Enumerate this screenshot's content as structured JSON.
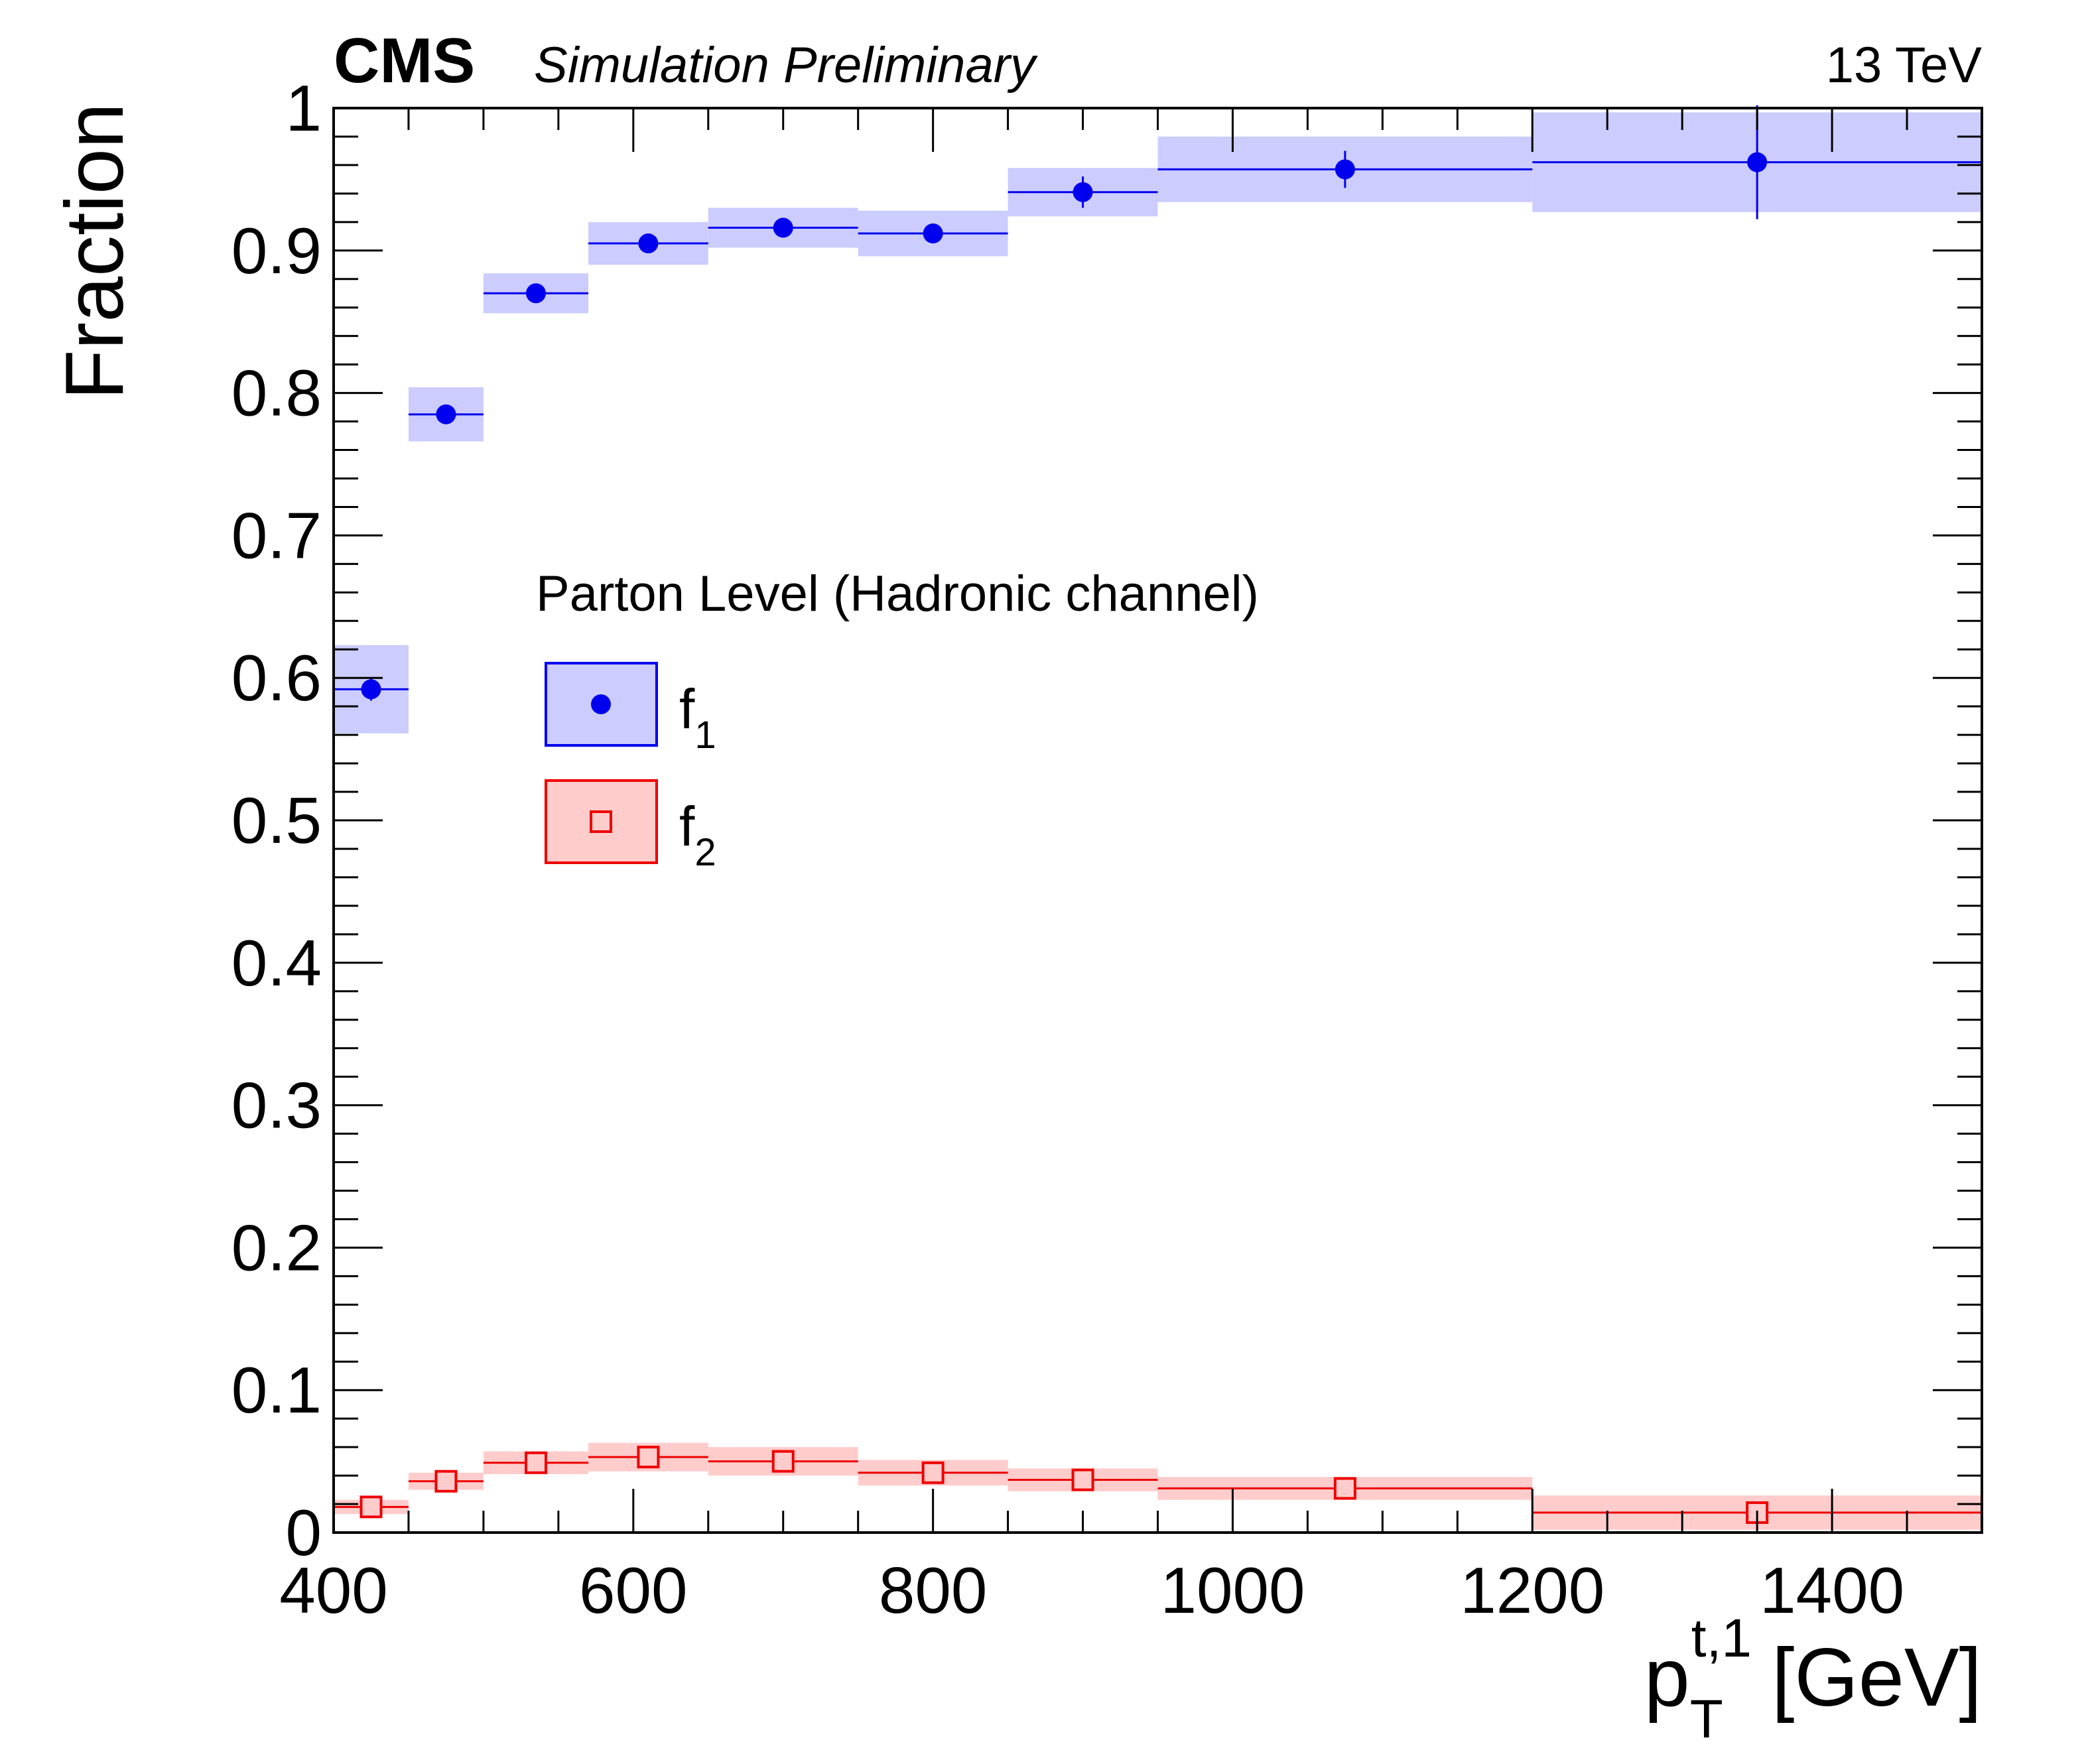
{
  "header": {
    "experiment": "CMS",
    "tag": "Simulation Preliminary",
    "energy": "13 TeV"
  },
  "chart_data": {
    "type": "scatter",
    "title": "",
    "ylabel": "Fraction",
    "xlabel": {
      "main": "p",
      "subscript": "T",
      "superscript": "t,1",
      "unit": "[GeV]"
    },
    "xlim": [
      400,
      1500
    ],
    "ylim": [
      0,
      1
    ],
    "x_ticks": [
      400,
      600,
      800,
      1000,
      1200,
      1400
    ],
    "x_tick_labels": [
      "400",
      "600",
      "800",
      "1000",
      "1200",
      "1400"
    ],
    "y_ticks": [
      0,
      0.1,
      0.2,
      0.3,
      0.4,
      0.5,
      0.6,
      0.7,
      0.8,
      0.9,
      1
    ],
    "y_tick_labels": [
      "0",
      "0.1",
      "0.2",
      "0.3",
      "0.4",
      "0.5",
      "0.6",
      "0.7",
      "0.8",
      "0.9",
      "1"
    ],
    "legend": {
      "title": "Parton Level (Hadronic channel)",
      "placement": "center-left",
      "entries": [
        {
          "label": "f",
          "subscript": "1"
        },
        {
          "label": "f",
          "subscript": "2"
        }
      ]
    },
    "series": [
      {
        "name": "f1",
        "color": "#0000ee",
        "band_color": "#ccccff",
        "marker": "filled-circle",
        "bins": [
          {
            "lo": 400,
            "hi": 450,
            "x": 425,
            "y": 0.592,
            "err": 0.008,
            "band": [
              0.561,
              0.623
            ]
          },
          {
            "lo": 450,
            "hi": 500,
            "x": 475,
            "y": 0.785,
            "err": 0.005,
            "band": [
              0.766,
              0.804
            ]
          },
          {
            "lo": 500,
            "hi": 570,
            "x": 535,
            "y": 0.87,
            "err": 0.004,
            "band": [
              0.856,
              0.884
            ]
          },
          {
            "lo": 570,
            "hi": 650,
            "x": 610,
            "y": 0.905,
            "err": 0.004,
            "band": [
              0.89,
              0.92
            ]
          },
          {
            "lo": 650,
            "hi": 750,
            "x": 700,
            "y": 0.916,
            "err": 0.004,
            "band": [
              0.902,
              0.93
            ]
          },
          {
            "lo": 750,
            "hi": 850,
            "x": 800,
            "y": 0.912,
            "err": 0.007,
            "band": [
              0.896,
              0.928
            ]
          },
          {
            "lo": 850,
            "hi": 950,
            "x": 900,
            "y": 0.941,
            "err": 0.011,
            "band": [
              0.924,
              0.958
            ]
          },
          {
            "lo": 950,
            "hi": 1200,
            "x": 1075,
            "y": 0.957,
            "err": 0.013,
            "band": [
              0.934,
              0.98
            ]
          },
          {
            "lo": 1200,
            "hi": 1500,
            "x": 1350,
            "y": 0.962,
            "err": 0.04,
            "band": [
              0.927,
              0.997
            ]
          }
        ]
      },
      {
        "name": "f2",
        "color": "#ee0000",
        "band_color": "#ffcccc",
        "marker": "open-square",
        "bins": [
          {
            "lo": 400,
            "hi": 450,
            "x": 425,
            "y": 0.018,
            "err": 0.003,
            "band": [
              0.013,
              0.023
            ]
          },
          {
            "lo": 450,
            "hi": 500,
            "x": 475,
            "y": 0.036,
            "err": 0.003,
            "band": [
              0.03,
              0.042
            ]
          },
          {
            "lo": 500,
            "hi": 570,
            "x": 535,
            "y": 0.049,
            "err": 0.003,
            "band": [
              0.041,
              0.057
            ]
          },
          {
            "lo": 570,
            "hi": 650,
            "x": 610,
            "y": 0.053,
            "err": 0.003,
            "band": [
              0.043,
              0.063
            ]
          },
          {
            "lo": 650,
            "hi": 750,
            "x": 700,
            "y": 0.05,
            "err": 0.003,
            "band": [
              0.04,
              0.06
            ]
          },
          {
            "lo": 750,
            "hi": 850,
            "x": 800,
            "y": 0.042,
            "err": 0.003,
            "band": [
              0.033,
              0.051
            ]
          },
          {
            "lo": 850,
            "hi": 950,
            "x": 900,
            "y": 0.037,
            "err": 0.003,
            "band": [
              0.029,
              0.045
            ]
          },
          {
            "lo": 950,
            "hi": 1200,
            "x": 1075,
            "y": 0.031,
            "err": 0.003,
            "band": [
              0.023,
              0.039
            ]
          },
          {
            "lo": 1200,
            "hi": 1500,
            "x": 1350,
            "y": 0.014,
            "err": 0.004,
            "band": [
              0.002,
              0.026
            ]
          }
        ]
      }
    ]
  }
}
